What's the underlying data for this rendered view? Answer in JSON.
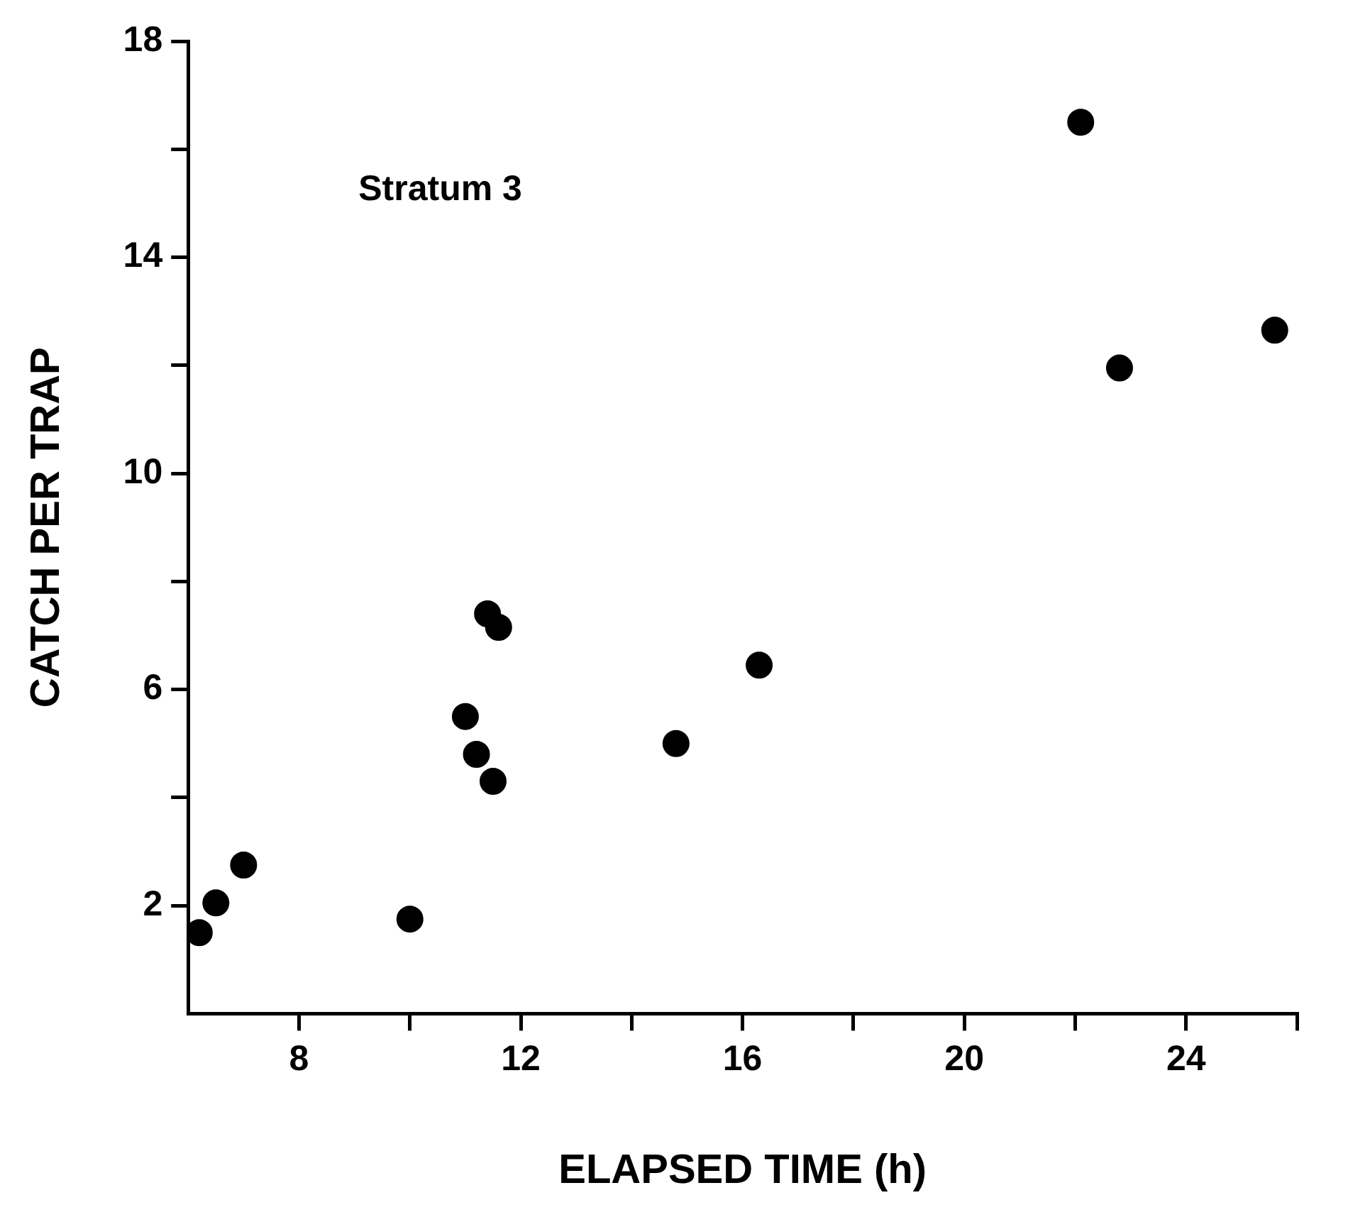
{
  "chart_data": {
    "type": "scatter",
    "xlabel": "ELAPSED TIME (h)",
    "ylabel": "CATCH PER TRAP",
    "annotations": [
      "Stratum 3"
    ],
    "series": [
      {
        "color": "#000000",
        "x": [
          6.2,
          6.5,
          7.0,
          10.0,
          11.0,
          11.2,
          11.4,
          11.5,
          11.6,
          14.8,
          16.3,
          22.1,
          22.8,
          25.6
        ],
        "values": [
          1.5,
          2.05,
          2.75,
          1.75,
          5.5,
          4.8,
          7.4,
          4.3,
          7.15,
          5.0,
          6.45,
          16.5,
          11.95,
          12.65
        ]
      }
    ],
    "xlim": [
      6,
      26
    ],
    "ylim": [
      0,
      18
    ],
    "xticks": [
      8,
      {
        "value": 10,
        "label": null
      },
      12,
      {
        "value": 14,
        "label": null
      },
      16,
      {
        "value": 18,
        "label": null
      },
      20,
      {
        "value": 22,
        "label": null
      },
      24,
      {
        "value": 26,
        "label": null
      }
    ],
    "yticks": [
      2,
      {
        "value": 4,
        "label": null
      },
      6,
      {
        "value": 8,
        "label": null
      },
      10,
      {
        "value": 12,
        "label": null
      },
      14,
      {
        "value": 16,
        "label": null
      },
      18
    ],
    "grid": false,
    "legend": false,
    "marker": "circle"
  }
}
